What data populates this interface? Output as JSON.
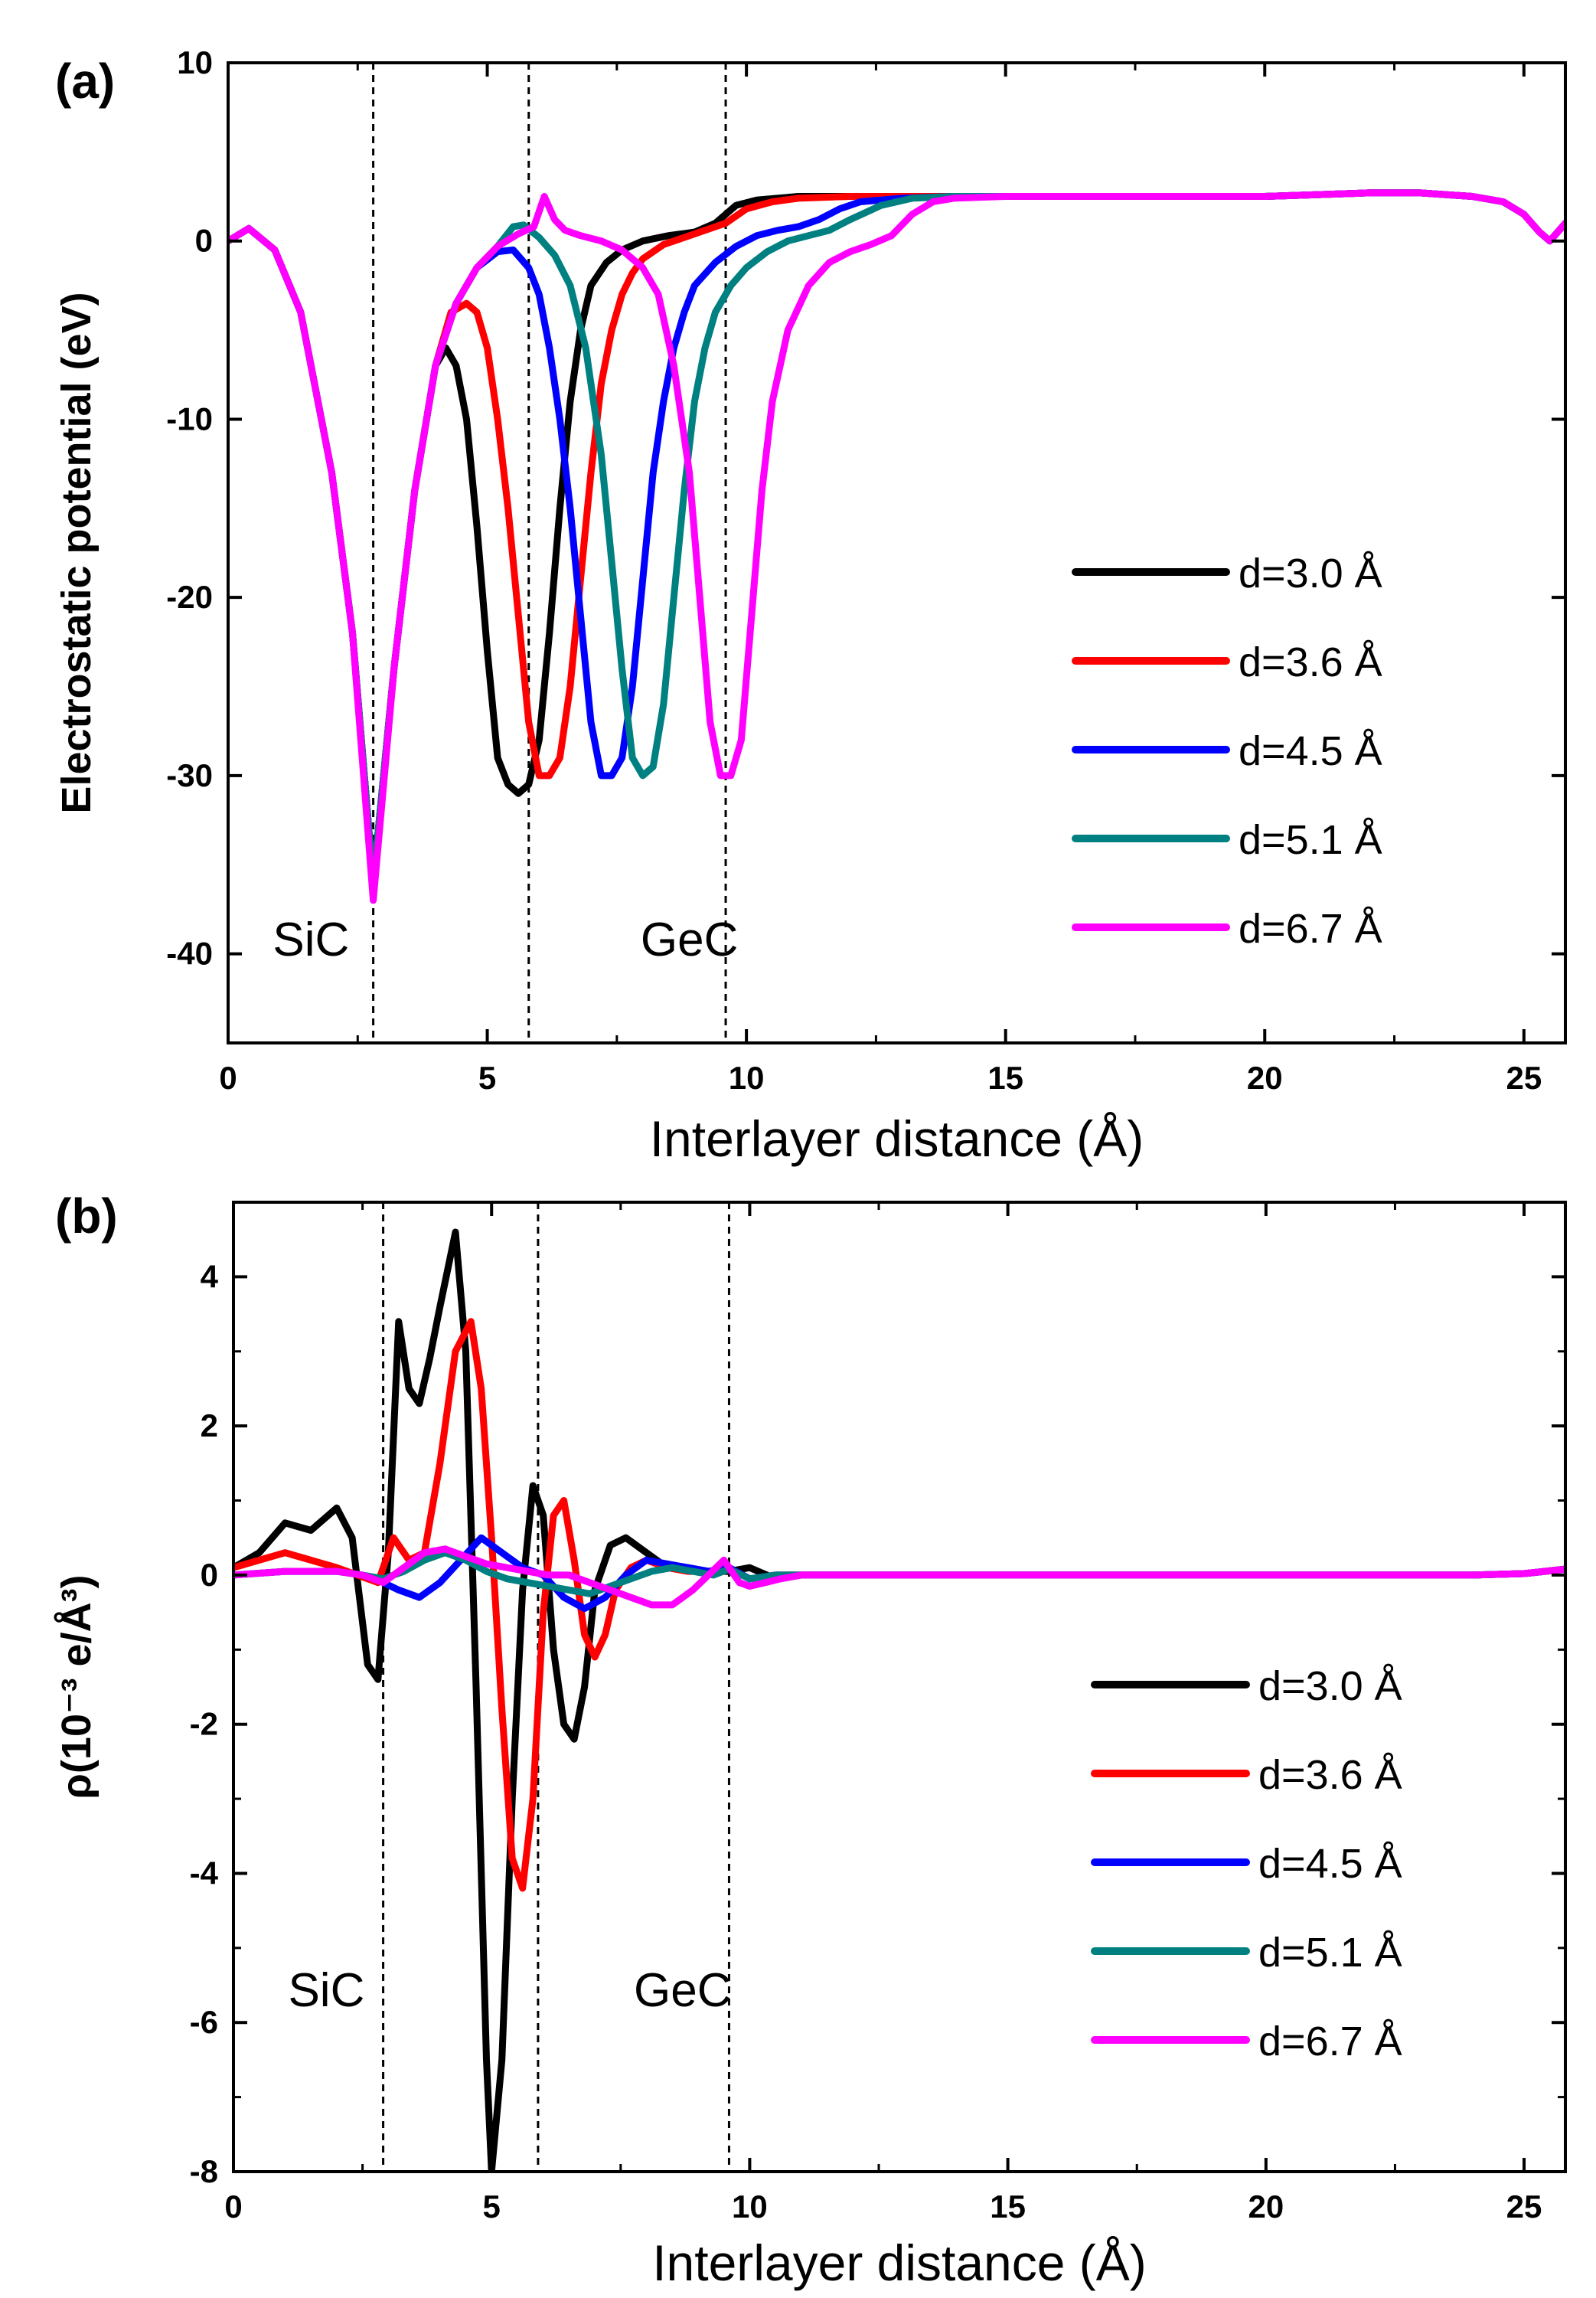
{
  "chart_data": [
    {
      "type": "line",
      "panel_label": "(a)",
      "xlabel": "Interlayer distance (Å)",
      "ylabel": "Electrostatic potential (eV)",
      "xlim": [
        0,
        25.8
      ],
      "ylim": [
        -45,
        10
      ],
      "x_ticks": [
        "0",
        "5",
        "10",
        "15",
        "20",
        "25"
      ],
      "y_ticks": [
        "10",
        "0",
        "-10",
        "-20",
        "-30",
        "-40"
      ],
      "x_tick_values": [
        0,
        5,
        10,
        15,
        20,
        25
      ],
      "y_tick_values": [
        10,
        0,
        -10,
        -20,
        -30,
        -40
      ],
      "legend_position": "lower-right",
      "vertical_dashed_lines_x": [
        2.8,
        5.8,
        9.6
      ],
      "annotations": [
        {
          "text": "SiC",
          "x": 1.6,
          "y": -40.3
        },
        {
          "text": "GeC",
          "x": 8.9,
          "y": -40.3
        }
      ],
      "series": [
        {
          "name": "d=3.0 Å",
          "color": "#000000",
          "x": [
            0,
            0.4,
            0.9,
            1.4,
            2.0,
            2.4,
            2.8,
            3.2,
            3.6,
            4.0,
            4.2,
            4.4,
            4.6,
            4.8,
            5.0,
            5.2,
            5.4,
            5.6,
            5.8,
            6.0,
            6.2,
            6.4,
            6.6,
            6.8,
            7.0,
            7.3,
            7.6,
            8.0,
            8.5,
            9.0,
            9.4,
            9.8,
            10.2,
            10.6,
            11.0,
            12,
            13,
            14,
            15,
            16,
            17,
            18,
            19,
            20,
            21,
            22,
            23,
            24,
            24.6,
            25.0,
            25.3,
            25.5,
            25.8
          ],
          "y": [
            0,
            0.7,
            -0.5,
            -4,
            -13,
            -22,
            -36,
            -24,
            -14,
            -7,
            -6,
            -7,
            -10,
            -16,
            -23,
            -29,
            -30.5,
            -31,
            -30.5,
            -28,
            -22,
            -15,
            -9,
            -5,
            -2.5,
            -1.2,
            -0.5,
            0,
            0.3,
            0.5,
            1.0,
            2.0,
            2.3,
            2.4,
            2.5,
            2.5,
            2.5,
            2.5,
            2.5,
            2.5,
            2.5,
            2.5,
            2.5,
            2.5,
            2.6,
            2.7,
            2.7,
            2.5,
            2.2,
            1.5,
            0.5,
            0,
            1.0
          ]
        },
        {
          "name": "d=3.6 Å",
          "color": "#ff0000",
          "x": [
            0,
            0.4,
            0.9,
            1.4,
            2.0,
            2.4,
            2.8,
            3.2,
            3.6,
            4.0,
            4.3,
            4.6,
            4.8,
            5.0,
            5.2,
            5.4,
            5.6,
            5.8,
            6.0,
            6.2,
            6.4,
            6.6,
            6.8,
            7.0,
            7.2,
            7.4,
            7.6,
            7.8,
            8.0,
            8.4,
            8.8,
            9.2,
            9.6,
            10.0,
            10.5,
            11.0,
            12,
            13,
            14,
            15,
            16,
            17,
            18,
            19,
            20,
            21,
            22,
            23,
            24,
            24.6,
            25.0,
            25.3,
            25.5,
            25.8
          ],
          "y": [
            0,
            0.7,
            -0.5,
            -4,
            -13,
            -22,
            -36,
            -24,
            -14,
            -7,
            -4,
            -3.5,
            -4,
            -6,
            -10,
            -15,
            -21,
            -27,
            -30,
            -30,
            -29,
            -25,
            -19,
            -13,
            -8,
            -5,
            -3,
            -1.8,
            -1,
            -0.2,
            0.2,
            0.6,
            1.0,
            1.8,
            2.2,
            2.4,
            2.5,
            2.5,
            2.5,
            2.5,
            2.5,
            2.5,
            2.5,
            2.5,
            2.5,
            2.6,
            2.7,
            2.7,
            2.5,
            2.2,
            1.5,
            0.5,
            0,
            1.0
          ]
        },
        {
          "name": "d=4.5 Å",
          "color": "#0000ff",
          "x": [
            0,
            0.4,
            0.9,
            1.4,
            2.0,
            2.4,
            2.8,
            3.2,
            3.6,
            4.0,
            4.4,
            4.8,
            5.2,
            5.5,
            5.8,
            6.0,
            6.2,
            6.4,
            6.6,
            6.8,
            7.0,
            7.2,
            7.4,
            7.6,
            7.8,
            8.0,
            8.2,
            8.4,
            8.6,
            8.8,
            9.0,
            9.4,
            9.8,
            10.2,
            10.6,
            11.0,
            11.4,
            11.8,
            12.2,
            13,
            14,
            15,
            16,
            17,
            18,
            19,
            20,
            21,
            22,
            23,
            24,
            24.6,
            25.0,
            25.3,
            25.5,
            25.8
          ],
          "y": [
            0,
            0.7,
            -0.5,
            -4,
            -13,
            -22,
            -36,
            -24,
            -14,
            -7,
            -3.5,
            -1.5,
            -0.6,
            -0.5,
            -1.5,
            -3,
            -6,
            -10,
            -15,
            -21,
            -27,
            -30,
            -30,
            -29,
            -25,
            -19,
            -13,
            -9,
            -6,
            -4,
            -2.5,
            -1.2,
            -0.3,
            0.3,
            0.6,
            0.8,
            1.2,
            1.8,
            2.2,
            2.4,
            2.5,
            2.5,
            2.5,
            2.5,
            2.5,
            2.5,
            2.5,
            2.6,
            2.7,
            2.7,
            2.5,
            2.2,
            1.5,
            0.5,
            0,
            1.0
          ]
        },
        {
          "name": "d=5.1 Å",
          "color": "#008080",
          "x": [
            0,
            0.4,
            0.9,
            1.4,
            2.0,
            2.4,
            2.8,
            3.2,
            3.6,
            4.0,
            4.4,
            4.8,
            5.2,
            5.5,
            5.7,
            6.0,
            6.3,
            6.6,
            6.9,
            7.2,
            7.4,
            7.6,
            7.8,
            8.0,
            8.2,
            8.4,
            8.6,
            8.8,
            9.0,
            9.2,
            9.4,
            9.7,
            10.0,
            10.4,
            10.8,
            11.2,
            11.6,
            12.0,
            12.6,
            13.2,
            14,
            15,
            16,
            17,
            18,
            19,
            20,
            21,
            22,
            23,
            24,
            24.6,
            25.0,
            25.3,
            25.5,
            25.8
          ],
          "y": [
            0,
            0.7,
            -0.5,
            -4,
            -13,
            -22,
            -36,
            -24,
            -14,
            -7,
            -3.5,
            -1.5,
            -0.3,
            0.8,
            0.9,
            0.2,
            -0.8,
            -2.5,
            -6,
            -12,
            -18,
            -24,
            -29,
            -30,
            -29.5,
            -26,
            -20,
            -14,
            -9,
            -6,
            -4,
            -2.5,
            -1.5,
            -0.6,
            0,
            0.3,
            0.6,
            1.2,
            2.0,
            2.4,
            2.5,
            2.5,
            2.5,
            2.5,
            2.5,
            2.5,
            2.5,
            2.6,
            2.7,
            2.7,
            2.5,
            2.2,
            1.5,
            0.5,
            0,
            1.0
          ]
        },
        {
          "name": "d=6.7 Å",
          "color": "#ff00ff",
          "x": [
            0,
            0.4,
            0.9,
            1.4,
            2.0,
            2.4,
            2.8,
            3.2,
            3.6,
            4.0,
            4.4,
            4.8,
            5.2,
            5.6,
            5.9,
            6.1,
            6.3,
            6.5,
            6.8,
            7.2,
            7.6,
            8.0,
            8.3,
            8.6,
            8.9,
            9.1,
            9.3,
            9.5,
            9.7,
            9.9,
            10.1,
            10.3,
            10.5,
            10.8,
            11.2,
            11.6,
            12.0,
            12.4,
            12.8,
            13.2,
            13.6,
            14,
            15,
            16,
            17,
            18,
            19,
            20,
            21,
            22,
            23,
            24,
            24.6,
            25.0,
            25.3,
            25.5,
            25.8
          ],
          "y": [
            0,
            0.7,
            -0.5,
            -4,
            -13,
            -22,
            -37,
            -24,
            -14,
            -7,
            -3.5,
            -1.5,
            -0.3,
            0.4,
            0.8,
            2.5,
            1.2,
            0.6,
            0.3,
            0,
            -0.5,
            -1.5,
            -3,
            -7,
            -13,
            -20,
            -27,
            -30,
            -30,
            -28,
            -21,
            -14,
            -9,
            -5,
            -2.5,
            -1.2,
            -0.6,
            -0.2,
            0.3,
            1.5,
            2.2,
            2.4,
            2.5,
            2.5,
            2.5,
            2.5,
            2.5,
            2.5,
            2.6,
            2.7,
            2.7,
            2.5,
            2.2,
            1.5,
            0.5,
            0,
            1.0
          ]
        }
      ]
    },
    {
      "type": "line",
      "panel_label": "(b)",
      "xlabel": "Interlayer distance (Å)",
      "ylabel": "ρ(10⁻³ e/Å³)",
      "xlim": [
        0,
        25.8
      ],
      "ylim": [
        -8,
        5
      ],
      "x_ticks": [
        "0",
        "5",
        "10",
        "15",
        "20",
        "25"
      ],
      "y_ticks": [
        "4",
        "2",
        "0",
        "-2",
        "-4",
        "-6",
        "-8"
      ],
      "x_tick_values": [
        0,
        5,
        10,
        15,
        20,
        25
      ],
      "y_tick_values": [
        4,
        2,
        0,
        -2,
        -4,
        -6,
        -8
      ],
      "legend_position": "lower-right",
      "vertical_dashed_lines_x": [
        2.9,
        5.9,
        9.6
      ],
      "annotations": [
        {
          "text": "SiC",
          "x": 1.8,
          "y": -5.8
        },
        {
          "text": "GeC",
          "x": 8.7,
          "y": -5.8
        }
      ],
      "series": [
        {
          "name": "d=3.0 Å",
          "color": "#000000",
          "x": [
            0,
            0.5,
            1.0,
            1.5,
            2.0,
            2.3,
            2.6,
            2.8,
            3.0,
            3.2,
            3.4,
            3.6,
            3.8,
            4.0,
            4.3,
            4.5,
            4.7,
            4.9,
            5.0,
            5.2,
            5.4,
            5.6,
            5.8,
            6.0,
            6.2,
            6.4,
            6.6,
            6.8,
            7.0,
            7.3,
            7.6,
            8.0,
            8.4,
            8.8,
            9.2,
            9.6,
            10.0,
            10.5,
            11,
            12,
            14,
            16,
            18,
            20,
            22,
            24,
            25.0,
            25.4,
            25.8
          ],
          "y": [
            0.1,
            0.3,
            0.7,
            0.6,
            0.9,
            0.5,
            -1.2,
            -1.4,
            0.3,
            3.4,
            2.5,
            2.3,
            2.9,
            3.6,
            4.6,
            3.0,
            -1.5,
            -6.5,
            -8.0,
            -6.5,
            -3.0,
            -0.2,
            1.2,
            0.8,
            -1.0,
            -2.0,
            -2.2,
            -1.5,
            -0.2,
            0.4,
            0.5,
            0.3,
            0.1,
            0.1,
            0.05,
            0.05,
            0.1,
            -0.05,
            0,
            0,
            0,
            0,
            0,
            0,
            0,
            0,
            0.02,
            0.05,
            0.08
          ]
        },
        {
          "name": "d=3.6 Å",
          "color": "#ff0000",
          "x": [
            0,
            0.5,
            1.0,
            1.5,
            2.0,
            2.4,
            2.8,
            3.1,
            3.4,
            3.7,
            4.0,
            4.3,
            4.6,
            4.8,
            5.0,
            5.2,
            5.4,
            5.6,
            5.8,
            6.0,
            6.2,
            6.4,
            6.6,
            6.8,
            7.0,
            7.2,
            7.4,
            7.7,
            8.0,
            8.4,
            8.8,
            9.2,
            9.6,
            10.0,
            10.5,
            11,
            12,
            14,
            16,
            18,
            20,
            22,
            24,
            25.0,
            25.4,
            25.8
          ],
          "y": [
            0.1,
            0.2,
            0.3,
            0.2,
            0.1,
            0,
            -0.1,
            0.5,
            0.2,
            0.3,
            1.5,
            3.0,
            3.4,
            2.5,
            0.5,
            -1.8,
            -3.8,
            -4.2,
            -3.0,
            -0.5,
            0.8,
            1.0,
            0.2,
            -0.8,
            -1.1,
            -0.8,
            -0.2,
            0.1,
            0.2,
            0.1,
            0.05,
            0.05,
            0.1,
            -0.05,
            0,
            0,
            0,
            0,
            0,
            0,
            0,
            0,
            0,
            0.02,
            0.05,
            0.08
          ]
        },
        {
          "name": "d=4.5 Å",
          "color": "#0000ff",
          "x": [
            0,
            1,
            2,
            2.5,
            2.9,
            3.2,
            3.6,
            4.0,
            4.4,
            4.8,
            5.2,
            5.6,
            6.0,
            6.4,
            6.8,
            7.2,
            7.6,
            8.0,
            8.4,
            8.8,
            9.2,
            9.6,
            10.0,
            10.5,
            11,
            12,
            14,
            16,
            18,
            20,
            22,
            24,
            25.0,
            25.4,
            25.8
          ],
          "y": [
            0,
            0.05,
            0.05,
            0,
            -0.1,
            -0.2,
            -0.3,
            -0.1,
            0.2,
            0.5,
            0.3,
            0.1,
            0.0,
            -0.3,
            -0.45,
            -0.3,
            0.0,
            0.2,
            0.15,
            0.1,
            0.05,
            0.1,
            -0.05,
            0,
            0,
            0,
            0,
            0,
            0,
            0,
            0,
            0,
            0.02,
            0.05,
            0.08
          ]
        },
        {
          "name": "d=5.1 Å",
          "color": "#008080",
          "x": [
            0,
            1,
            2,
            2.5,
            2.9,
            3.3,
            3.7,
            4.1,
            4.5,
            4.9,
            5.3,
            5.7,
            6.1,
            6.5,
            6.9,
            7.3,
            7.7,
            8.1,
            8.5,
            8.9,
            9.3,
            9.6,
            10.0,
            10.5,
            11,
            12,
            14,
            16,
            18,
            20,
            22,
            24,
            25.0,
            25.4,
            25.8
          ],
          "y": [
            0,
            0.05,
            0.05,
            0,
            -0.05,
            0.05,
            0.2,
            0.3,
            0.2,
            0.05,
            -0.05,
            -0.1,
            -0.15,
            -0.2,
            -0.25,
            -0.15,
            -0.05,
            0.05,
            0.1,
            0.05,
            0.0,
            0.08,
            -0.05,
            0,
            0,
            0,
            0,
            0,
            0,
            0,
            0,
            0,
            0.02,
            0.05,
            0.08
          ]
        },
        {
          "name": "d=6.7 Å",
          "color": "#ff00ff",
          "x": [
            0,
            1,
            2,
            2.5,
            2.9,
            3.3,
            3.7,
            4.1,
            4.5,
            4.9,
            5.3,
            5.7,
            6.1,
            6.5,
            6.9,
            7.3,
            7.7,
            8.1,
            8.5,
            8.9,
            9.2,
            9.5,
            9.8,
            10.0,
            10.3,
            10.6,
            11,
            12,
            14,
            16,
            18,
            20,
            22,
            24,
            25.0,
            25.4,
            25.8
          ],
          "y": [
            0,
            0.05,
            0.05,
            0,
            -0.1,
            0.1,
            0.3,
            0.35,
            0.25,
            0.15,
            0.1,
            0.05,
            0.0,
            0.0,
            -0.1,
            -0.2,
            -0.3,
            -0.4,
            -0.4,
            -0.2,
            0.0,
            0.2,
            -0.1,
            -0.15,
            -0.1,
            -0.05,
            0,
            0,
            0,
            0,
            0,
            0,
            0,
            0,
            0.02,
            0.05,
            0.08
          ]
        }
      ]
    }
  ]
}
